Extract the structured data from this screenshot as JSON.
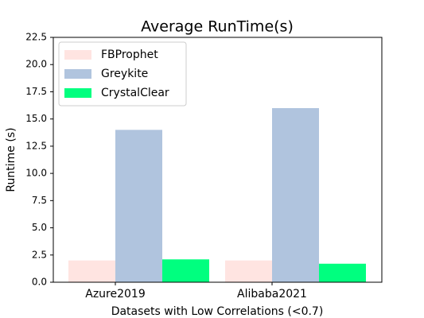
{
  "chart_data": {
    "type": "bar",
    "title": "Average RunTime(s)",
    "x_label": "Datasets with Low Correlations (<0.7)",
    "y_label": "Runtime (s)",
    "categories": [
      "Azure2019",
      "Alibaba2021"
    ],
    "series": [
      {
        "name": "FBProphet",
        "color": "#ffe4e1",
        "values": [
          2.0,
          2.0
        ]
      },
      {
        "name": "Greykite",
        "color": "#b0c4de",
        "values": [
          14.0,
          16.0
        ]
      },
      {
        "name": "CrystalClear",
        "color": "#00ff7f",
        "values": [
          2.1,
          1.7
        ]
      }
    ],
    "ylim": [
      0,
      22.5
    ],
    "yticks": [
      {
        "value": 0,
        "label": "0.0"
      },
      2.5,
      {
        "value": 5,
        "label": "5.0"
      },
      7.5,
      {
        "value": 10,
        "label": "10.0"
      },
      12.5,
      {
        "value": 15,
        "label": "15.0"
      },
      17.5,
      {
        "value": 20,
        "label": "20.0"
      },
      22.5
    ],
    "legend": "upper-left",
    "grid": false
  }
}
